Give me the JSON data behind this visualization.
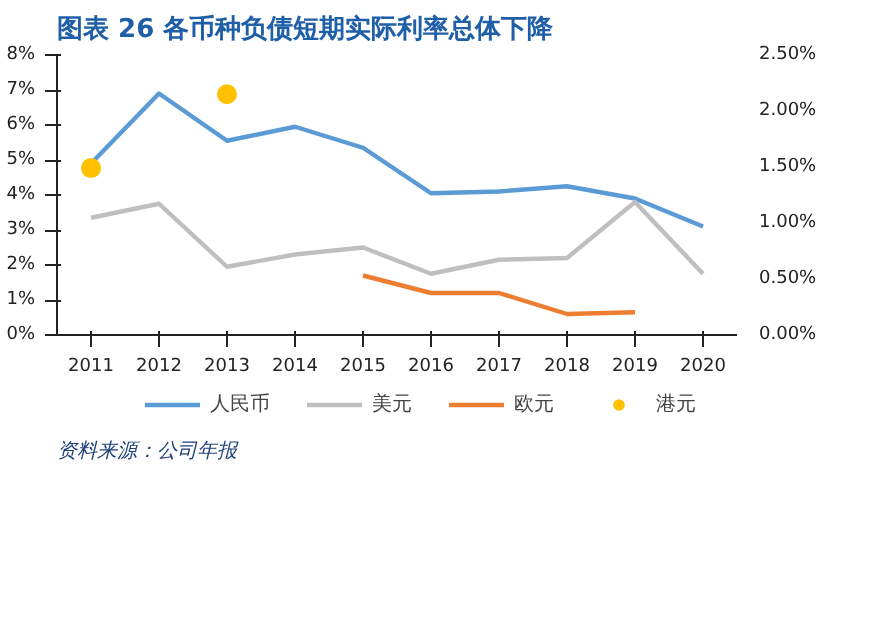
{
  "chart_data": {
    "type": "line",
    "title": "图表 26   各币种负债短期实际利率总体下降",
    "categories": [
      "2011",
      "2012",
      "2013",
      "2014",
      "2015",
      "2016",
      "2017",
      "2018",
      "2019",
      "2020"
    ],
    "series": [
      {
        "name": "人民币",
        "color": "#5b9bd5",
        "values": [
          4.9,
          6.9,
          5.55,
          5.95,
          5.35,
          4.05,
          4.1,
          4.25,
          3.9,
          3.1
        ]
      },
      {
        "name": "美元",
        "color": "#bfbfbf",
        "values": [
          3.35,
          3.75,
          1.95,
          2.3,
          2.5,
          1.75,
          2.15,
          2.2,
          3.8,
          1.75
        ]
      },
      {
        "name": "欧元",
        "color": "#ed7d31",
        "values": [
          null,
          null,
          null,
          null,
          1.7,
          1.2,
          1.2,
          0.6,
          0.65,
          null
        ]
      },
      {
        "name": "港元",
        "type": "scatter",
        "marker": "circle",
        "axis": "y2",
        "color": "#ffc000",
        "values": [
          1.49,
          null,
          2.15,
          null,
          null,
          null,
          null,
          null,
          null,
          null
        ]
      }
    ],
    "ylim": [
      0,
      8
    ],
    "yticks": [
      {
        "value": 0,
        "label": "0%"
      },
      {
        "value": 1,
        "label": "1%"
      },
      {
        "value": 2,
        "label": "2%"
      },
      {
        "value": 3,
        "label": "3%"
      },
      {
        "value": 4,
        "label": "4%"
      },
      {
        "value": 5,
        "label": "5%"
      },
      {
        "value": 6,
        "label": "6%"
      },
      {
        "value": 7,
        "label": "7%"
      },
      {
        "value": 8,
        "label": "8%"
      }
    ],
    "y2lim": [
      0,
      2.5
    ],
    "y2ticks": [
      {
        "value": 0,
        "label": "0.00%"
      },
      {
        "value": 0.5,
        "label": "0.50%"
      },
      {
        "value": 1,
        "label": "1.00%"
      },
      {
        "value": 1.5,
        "label": "1.50%"
      },
      {
        "value": 2,
        "label": "2.00%"
      },
      {
        "value": 2.5,
        "label": "2.50%"
      }
    ],
    "grid": false,
    "legend": "bottom",
    "annotations": [
      "资料来源：公司年报"
    ]
  }
}
